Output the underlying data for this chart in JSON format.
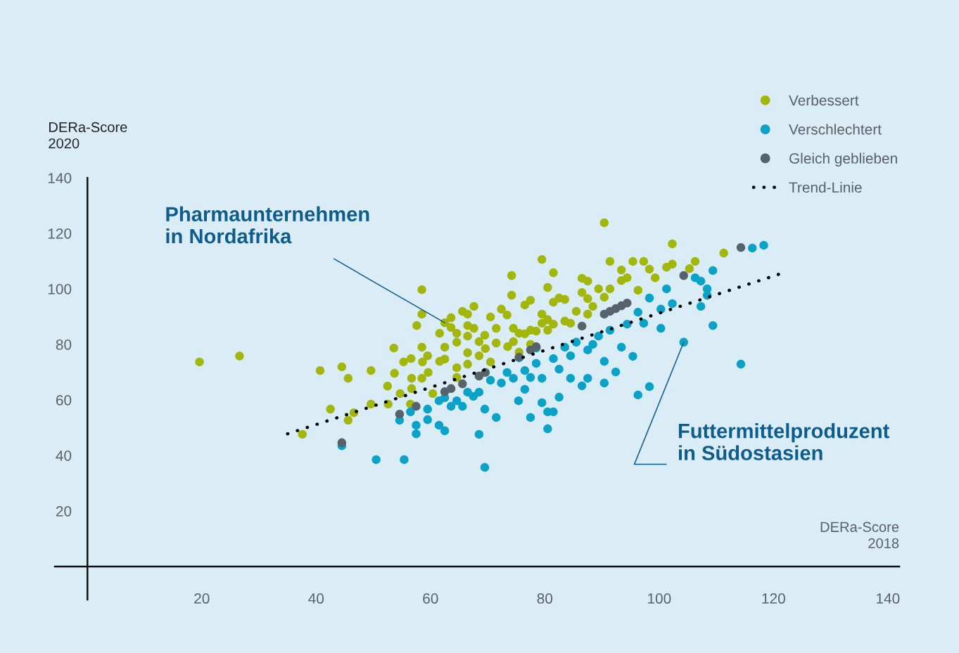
{
  "chart_data": {
    "type": "scatter",
    "xlabel": "DERa-Score\n2018",
    "ylabel": "DERa-Score\n2020",
    "xlim": [
      -5.7,
      142
    ],
    "ylim": [
      -11.9,
      140
    ],
    "xticks": [
      20,
      40,
      60,
      80,
      100,
      120,
      140
    ],
    "yticks": [
      20,
      40,
      60,
      80,
      100,
      120,
      140
    ],
    "grid": false,
    "legend": "top right",
    "marker": "circle",
    "annotations": [
      {
        "text": "Pharmaunternehmen\nin Nordafrika",
        "x": 62.5,
        "y": 87.8
      },
      {
        "text": "Futtermittelproduzent\nin Südostasien",
        "x": 104.3,
        "y": 80.8
      }
    ],
    "series": [
      {
        "name": "Verbessert",
        "color": "#a2b60c",
        "x": [
          19.6,
          26.6,
          37.6,
          40.7,
          42.5,
          44.5,
          45.6,
          45.6,
          46.6,
          49.6,
          49.6,
          52.5,
          52.6,
          53.6,
          53.7,
          54.7,
          55.3,
          56.6,
          56.7,
          56.5,
          56.7,
          57.6,
          58.5,
          58.5,
          58.5,
          58.6,
          58.5,
          59.5,
          59.6,
          60.4,
          61.6,
          61.6,
          62.5,
          62.5,
          62.5,
          63.6,
          63.6,
          64.6,
          64.6,
          64.6,
          64.6,
          65.6,
          66.5,
          66.5,
          66.5,
          66.5,
          66.5,
          67.6,
          67.6,
          68.5,
          68.5,
          69.5,
          69.6,
          70.5,
          70.5,
          71.5,
          71.5,
          72.4,
          73.4,
          73.5,
          74.2,
          74.2,
          74.5,
          74.5,
          75.5,
          75.5,
          76.5,
          76.5,
          77.5,
          77.5,
          77.5,
          78.5,
          79.5,
          79.5,
          79.5,
          80.5,
          80.5,
          80.5,
          81.5,
          81.5,
          81.5,
          82.5,
          83.5,
          83.5,
          84.5,
          85.5,
          86.5,
          86.5,
          87.5,
          87.5,
          87.5,
          88.4,
          89.4,
          90.4,
          90.4,
          91.4,
          91.4,
          93.4,
          93.4,
          94.4,
          95.4,
          96.3,
          97.3,
          98.3,
          99.3,
          101.3,
          102.3,
          102.3,
          105.3,
          106.3,
          111.3
        ],
        "values": [
          73.7,
          75.8,
          47.6,
          70.6,
          56.7,
          71.9,
          67.8,
          52.7,
          55.4,
          70.6,
          58.5,
          65,
          58.5,
          78.7,
          69.6,
          62.3,
          73.7,
          74.9,
          67.8,
          58.5,
          64.1,
          86.8,
          99.7,
          90.9,
          79,
          73.7,
          67.8,
          75.9,
          69.9,
          62.3,
          84,
          73.9,
          87.8,
          79,
          74.7,
          89.6,
          86.1,
          84,
          80.8,
          71.6,
          68.1,
          91.9,
          90.9,
          86.8,
          83,
          77,
          72.9,
          93.7,
          85.8,
          81,
          75.9,
          83.3,
          78.5,
          89.9,
          73.7,
          85.8,
          80.5,
          92.7,
          90.6,
          79.2,
          97.7,
          104.8,
          85.8,
          81,
          84,
          77.2,
          94.2,
          83.8,
          95.9,
          85.1,
          80,
          84.8,
          110.6,
          90.9,
          87.6,
          100.5,
          88.9,
          85.1,
          105.8,
          95.2,
          87.3,
          96.7,
          88.4,
          96.2,
          87.6,
          91.9,
          103.8,
          98.7,
          102.8,
          96.5,
          90.9,
          93.7,
          100,
          97,
          123.8,
          109.9,
          100,
          106.8,
          103,
          104,
          109.9,
          99.5,
          109.9,
          107.1,
          104,
          107.8,
          116.2,
          108.9,
          107.3,
          109.9,
          112.9
        ]
      },
      {
        "name": "Verschlechtert",
        "color": "#0ba2c8",
        "x": [
          44.5,
          50.5,
          55.4,
          54.6,
          56.5,
          57.5,
          57.5,
          59.5,
          59.5,
          61.5,
          62.5,
          61.5,
          62.5,
          63.6,
          64.6,
          65.6,
          66.5,
          67.5,
          68.5,
          68.5,
          69.5,
          69.5,
          70.5,
          71.5,
          72.4,
          73.4,
          74.5,
          75.4,
          75.5,
          76.5,
          76.5,
          77.5,
          77.5,
          78.5,
          78.5,
          79.5,
          79.5,
          80.5,
          80.5,
          81.5,
          81.5,
          82.5,
          82.5,
          83.5,
          84.5,
          84.5,
          85.5,
          86.5,
          87.5,
          87.5,
          88.4,
          89.4,
          90.4,
          90.4,
          91.4,
          92.4,
          93.4,
          94.4,
          95.4,
          96.3,
          96.3,
          97.3,
          98.3,
          98.3,
          100.3,
          100.3,
          101.3,
          102.3,
          104.3,
          106.3,
          107.3,
          107.3,
          108.4,
          108.4,
          109.4,
          109.4,
          114.3,
          116.3,
          118.3
        ],
        "values": [
          43.5,
          38.5,
          38.5,
          52.7,
          55.7,
          47.8,
          50.9,
          52.9,
          56.7,
          50.9,
          48.9,
          59.7,
          60.8,
          57.7,
          59.7,
          57.7,
          62.8,
          61.3,
          62.8,
          47.6,
          56.7,
          35.7,
          67.1,
          53.7,
          66.1,
          69.9,
          67.8,
          59.7,
          75.2,
          63.8,
          70.6,
          53.7,
          68.1,
          73.2,
          78.7,
          67.8,
          59,
          55.7,
          49.6,
          55.7,
          74.9,
          61,
          71.1,
          79,
          67.8,
          75.9,
          80.8,
          65.1,
          67.8,
          78,
          80,
          83,
          66.1,
          73.9,
          85.1,
          70.1,
          79,
          87.3,
          75.7,
          61.8,
          91.6,
          87.6,
          64.8,
          96.7,
          85.8,
          92.7,
          100,
          94.7,
          80.8,
          104,
          102.8,
          93.7,
          97.7,
          100,
          106.6,
          86.8,
          72.9,
          114.7,
          115.7
        ]
      },
      {
        "name": "Gleich geblieben",
        "color": "#57626b",
        "x": [
          44.5,
          54.6,
          57.5,
          62.5,
          63.6,
          65.6,
          68.5,
          69.6,
          75.5,
          77.5,
          78.5,
          86.5,
          90.4,
          91.4,
          92.4,
          93.4,
          94.4,
          104.3,
          114.3
        ],
        "values": [
          44.6,
          54.9,
          57.7,
          63,
          64.1,
          65.8,
          68.6,
          69.9,
          75.4,
          78,
          79.2,
          86.6,
          90.9,
          91.9,
          92.9,
          93.9,
          94.9,
          104.8,
          114.9
        ]
      },
      {
        "name": "Trend-Linie",
        "type": "line",
        "color": "#000000",
        "line_style": "dotted",
        "marker": "none",
        "x": [
          35,
          121
        ],
        "values": [
          47.8,
          105.3
        ]
      }
    ]
  }
}
